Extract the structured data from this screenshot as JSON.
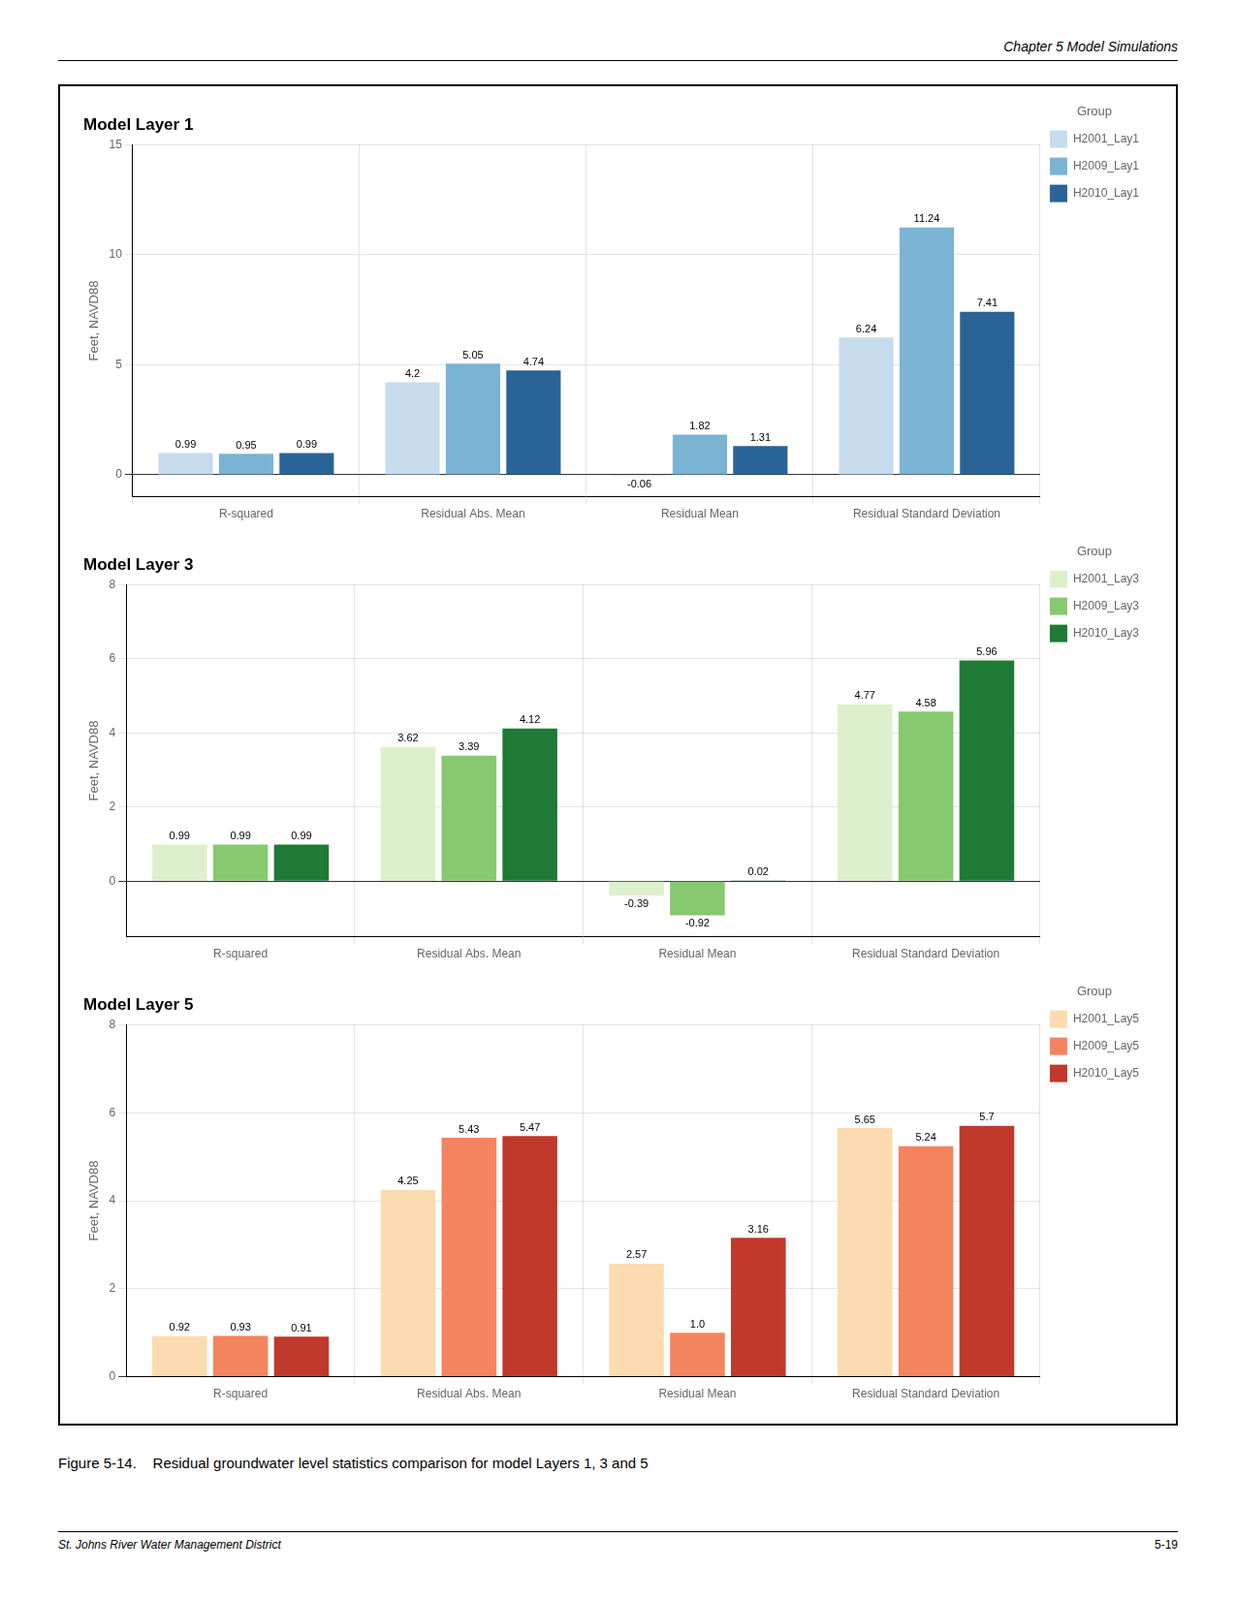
{
  "chart_data": [
    {
      "type": "bar",
      "title": "Model Layer 1",
      "categories": [
        "R-squared",
        "Residual Abs. Mean",
        "Residual Mean",
        "Residual Standard Deviation"
      ],
      "series": [
        {
          "name": "H2001_Lay1",
          "color": "#c6dced",
          "values": [
            0.99,
            4.2,
            -0.06,
            6.24
          ]
        },
        {
          "name": "H2009_Lay1",
          "color": "#7ab3d4",
          "values": [
            0.95,
            5.05,
            1.82,
            11.24
          ]
        },
        {
          "name": "H2010_Lay1",
          "color": "#2a6496",
          "values": [
            0.99,
            4.74,
            1.31,
            7.41
          ]
        }
      ],
      "ylabel": "Feet, NAVD88",
      "ylim": [
        -1,
        15
      ],
      "yticks": [
        0,
        5,
        10,
        15
      ],
      "grid": true,
      "legend": "right",
      "legend_title": "Group",
      "data_labels": true
    },
    {
      "type": "bar",
      "title": "Model Layer 3",
      "categories": [
        "R-squared",
        "Residual Abs. Mean",
        "Residual Mean",
        "Residual Standard Deviation"
      ],
      "series": [
        {
          "name": "H2001_Lay3",
          "color": "#ddf0cc",
          "values": [
            0.99,
            3.62,
            -0.39,
            4.77
          ]
        },
        {
          "name": "H2009_Lay3",
          "color": "#86c96e",
          "values": [
            0.99,
            3.39,
            -0.92,
            4.58
          ]
        },
        {
          "name": "H2010_Lay3",
          "color": "#1e7a34",
          "values": [
            0.99,
            4.12,
            0.02,
            5.96
          ]
        }
      ],
      "ylabel": "Feet, NAVD88",
      "ylim": [
        -1.5,
        8
      ],
      "yticks": [
        0,
        2,
        4,
        6,
        8
      ],
      "grid": true,
      "legend": "right",
      "legend_title": "Group",
      "data_labels": true
    },
    {
      "type": "bar",
      "title": "Model Layer 5",
      "categories": [
        "R-squared",
        "Residual Abs. Mean",
        "Residual Mean",
        "Residual Standard Deviation"
      ],
      "series": [
        {
          "name": "H2001_Lay5",
          "color": "#fddbb0",
          "values": [
            0.92,
            4.25,
            2.57,
            5.65
          ]
        },
        {
          "name": "H2009_Lay5",
          "color": "#f4845f",
          "values": [
            0.93,
            5.43,
            1.0,
            5.24
          ],
          "value_labels": [
            "0.93",
            "5.43",
            "1.0",
            "5.24"
          ]
        },
        {
          "name": "H2010_Lay5",
          "color": "#c0392b",
          "values": [
            0.91,
            5.47,
            3.16,
            5.7
          ]
        }
      ],
      "ylabel": "Feet, NAVD88",
      "ylim": [
        0,
        8
      ],
      "yticks": [
        0,
        2,
        4,
        6,
        8
      ],
      "grid": true,
      "legend": "right",
      "legend_title": "Group",
      "data_labels": true
    }
  ],
  "header": "Chapter 5 Model Simulations",
  "caption": "Figure 5-14.    Residual groundwater level statistics comparison for model Layers 1, 3 and 5",
  "footer_left": "St. Johns River Water Management District",
  "footer_right": "5-19"
}
